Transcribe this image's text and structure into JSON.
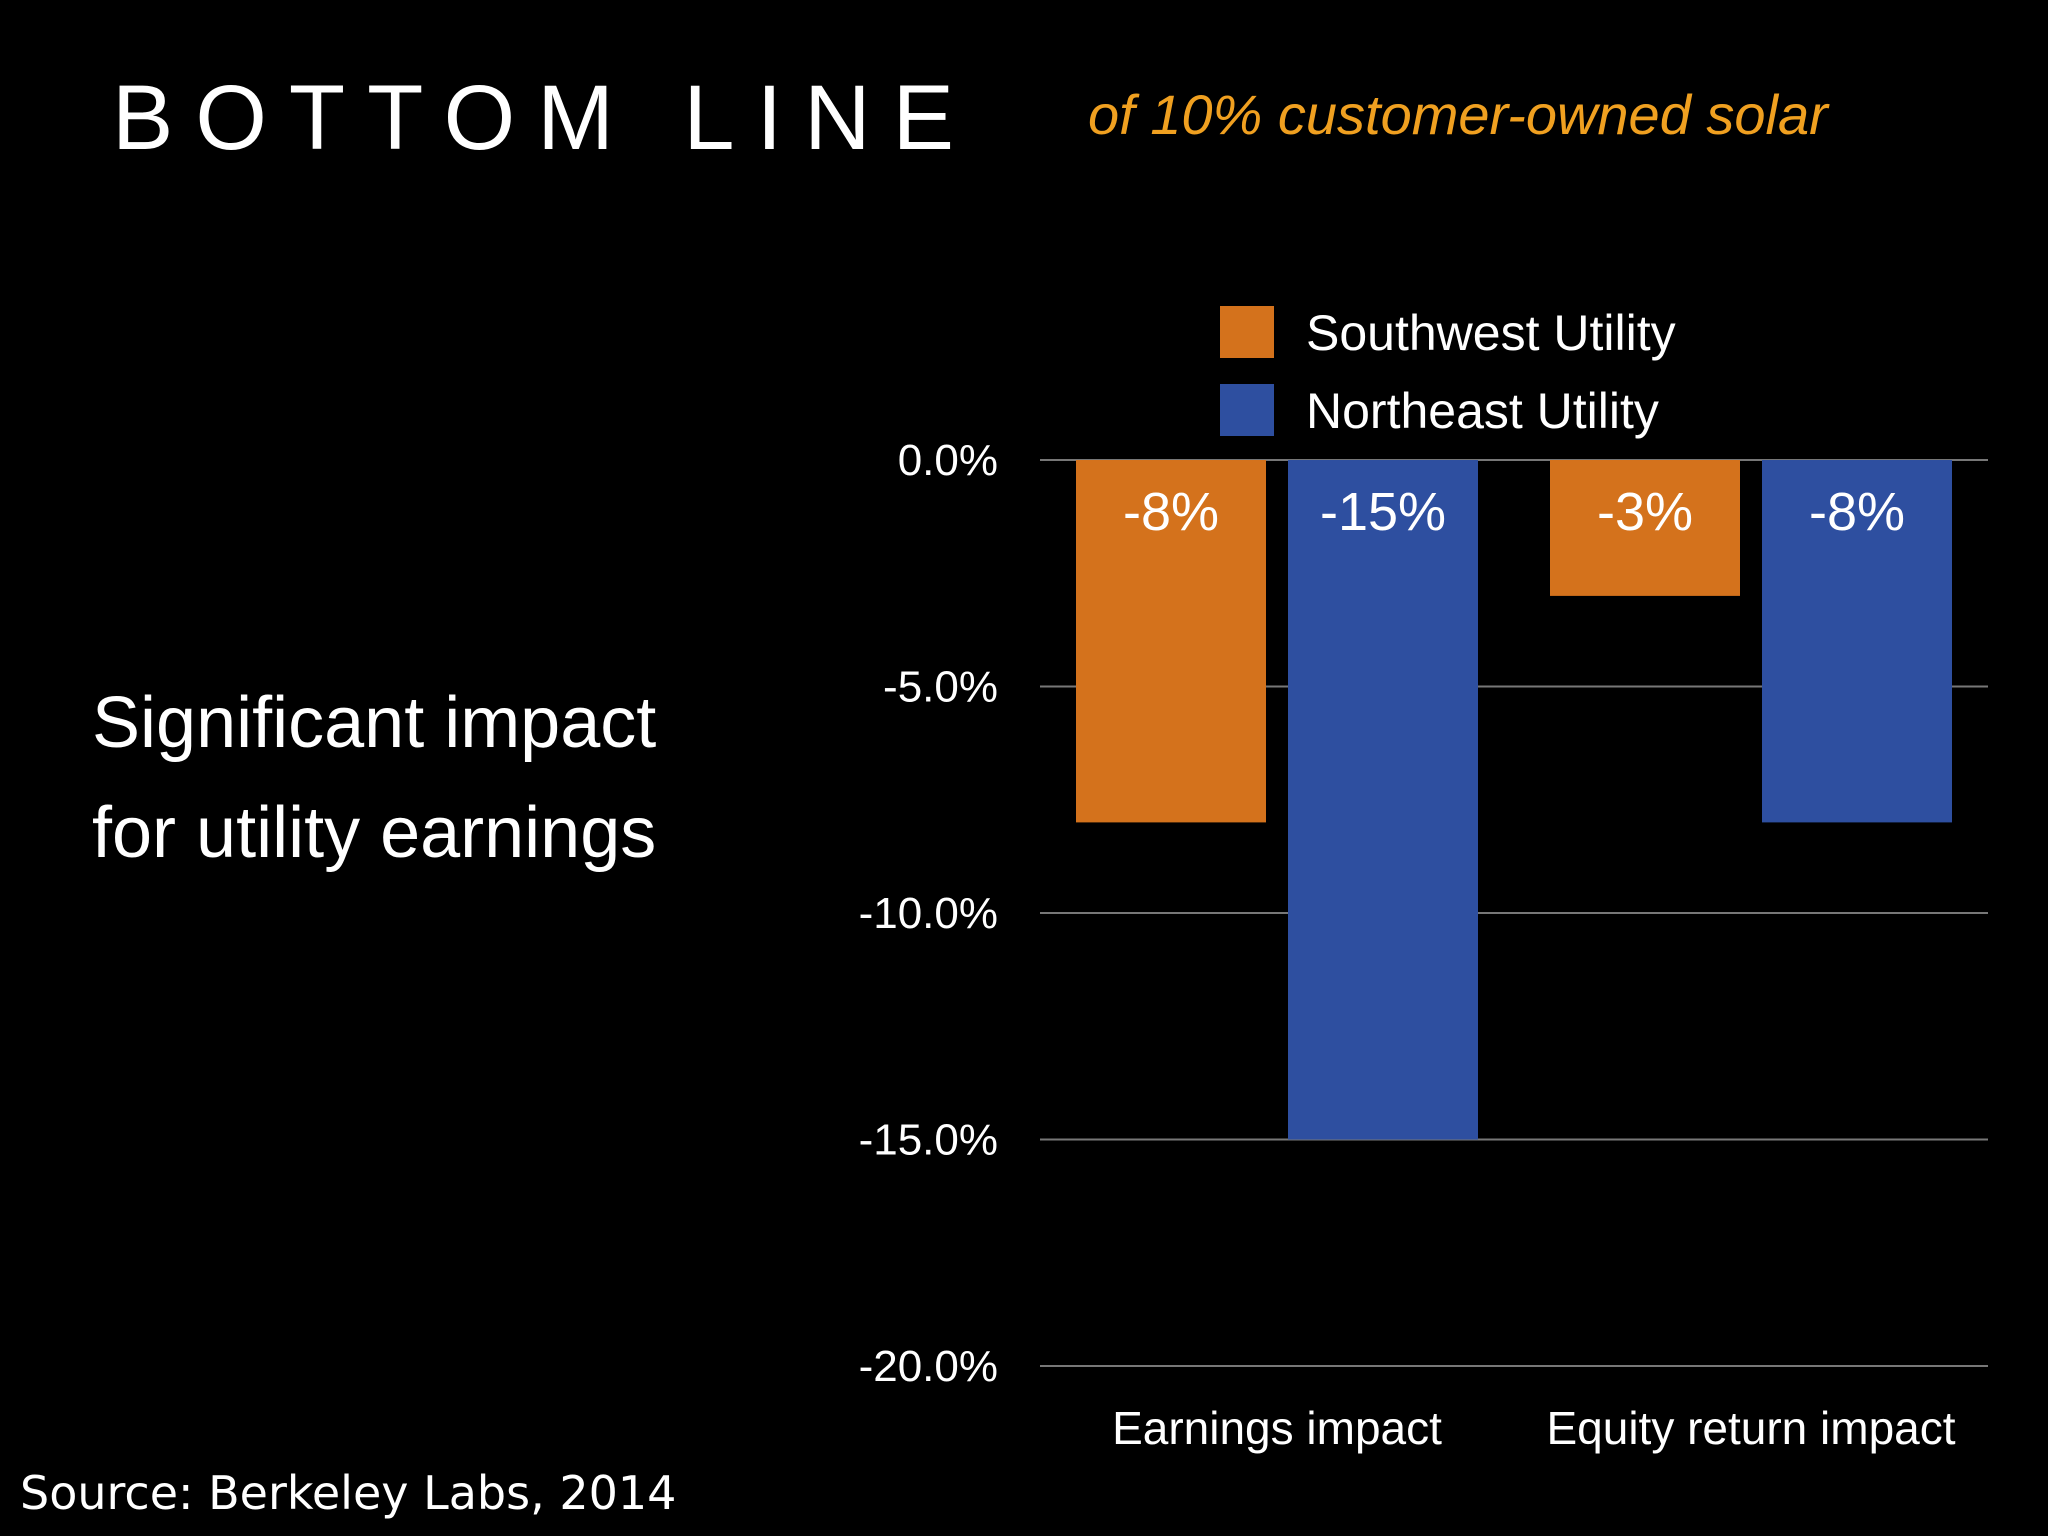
{
  "slide": {
    "title": "BOTTOM LINE",
    "subtitle": "of 10% customer-owned solar",
    "note_lines": [
      "Significant impact",
      "for utility earnings"
    ],
    "source": "Source: Berkeley Labs, 2014"
  },
  "chart_data": {
    "type": "bar",
    "categories": [
      "Earnings impact",
      "Equity return impact"
    ],
    "series": [
      {
        "name": "Southwest Utility",
        "color": "#d4721c",
        "values": [
          -8,
          -3
        ],
        "labels": [
          "-8%",
          "-3%"
        ]
      },
      {
        "name": "Northeast Utility",
        "color": "#2e4fa0",
        "values": [
          -15,
          -8
        ],
        "labels": [
          "-15%",
          "-8%"
        ]
      }
    ],
    "yticks": [
      "0.0%",
      "-5.0%",
      "-10.0%",
      "-15.0%",
      "-20.0%"
    ],
    "ytick_values": [
      0,
      -5,
      -10,
      -15,
      -20
    ],
    "ylim": [
      -20,
      0
    ],
    "grid": true,
    "legend": "top"
  }
}
